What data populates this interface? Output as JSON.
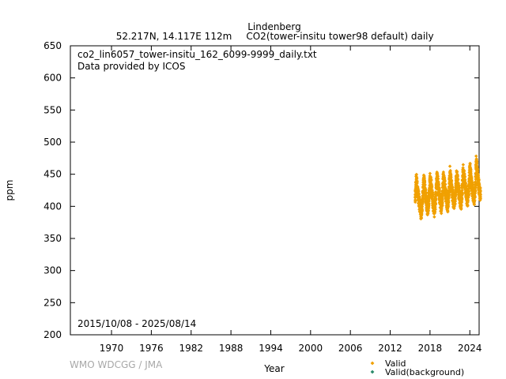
{
  "chart_data": {
    "type": "scatter",
    "title": "Lindenberg",
    "subtitle_location": "52.217N, 14.117E 112m",
    "subtitle_species": "CO2(tower-insitu tower98 default) daily",
    "file_name": "co2_lin6057_tower-insitu_162_6099-9999_daily.txt",
    "provider": "Data provided by ICOS",
    "date_range": "2015/10/08 - 2025/08/14",
    "xlabel": "Year",
    "ylabel": "ppm",
    "xlim": [
      1963.8,
      2025.4
    ],
    "ylim": [
      200,
      650
    ],
    "xticks": [
      1970,
      1976,
      1982,
      1988,
      1994,
      2000,
      2006,
      2012,
      2018,
      2024
    ],
    "yticks": [
      200,
      250,
      300,
      350,
      400,
      450,
      500,
      550,
      600,
      650
    ],
    "grid": false,
    "legend_position": "bottom-right",
    "watermark": "WMO WDCGG / JMA",
    "series": [
      {
        "name": "Valid",
        "color": "#f0a000",
        "marker": "diamond",
        "x_start": "2015-10-08",
        "x_end": "2025-08-14",
        "points": [
          [
            2015.77,
            410
          ],
          [
            2015.85,
            425
          ],
          [
            2015.93,
            442
          ],
          [
            2016.05,
            432
          ],
          [
            2016.2,
            418
          ],
          [
            2016.4,
            405
          ],
          [
            2016.6,
            393
          ],
          [
            2016.68,
            388
          ],
          [
            2016.8,
            400
          ],
          [
            2016.95,
            420
          ],
          [
            2017.05,
            440
          ],
          [
            2017.15,
            436
          ],
          [
            2017.3,
            420
          ],
          [
            2017.5,
            404
          ],
          [
            2017.62,
            396
          ],
          [
            2017.75,
            402
          ],
          [
            2017.9,
            424
          ],
          [
            2018.0,
            441
          ],
          [
            2018.15,
            434
          ],
          [
            2018.35,
            415
          ],
          [
            2018.55,
            400
          ],
          [
            2018.65,
            394
          ],
          [
            2018.8,
            405
          ],
          [
            2018.95,
            428
          ],
          [
            2019.05,
            444
          ],
          [
            2019.2,
            435
          ],
          [
            2019.4,
            418
          ],
          [
            2019.6,
            404
          ],
          [
            2019.7,
            399
          ],
          [
            2019.85,
            412
          ],
          [
            2020.0,
            446
          ],
          [
            2020.15,
            438
          ],
          [
            2020.35,
            420
          ],
          [
            2020.55,
            406
          ],
          [
            2020.68,
            402
          ],
          [
            2020.85,
            418
          ],
          [
            2021.0,
            452
          ],
          [
            2021.1,
            445
          ],
          [
            2021.3,
            425
          ],
          [
            2021.55,
            408
          ],
          [
            2021.68,
            405
          ],
          [
            2021.85,
            420
          ],
          [
            2022.0,
            447
          ],
          [
            2022.15,
            440
          ],
          [
            2022.35,
            422
          ],
          [
            2022.58,
            409
          ],
          [
            2022.7,
            406
          ],
          [
            2022.85,
            425
          ],
          [
            2023.0,
            455
          ],
          [
            2023.12,
            446
          ],
          [
            2023.35,
            428
          ],
          [
            2023.58,
            412
          ],
          [
            2023.7,
            410
          ],
          [
            2023.85,
            428
          ],
          [
            2024.0,
            460
          ],
          [
            2024.1,
            452
          ],
          [
            2024.3,
            432
          ],
          [
            2024.55,
            415
          ],
          [
            2024.68,
            413
          ],
          [
            2024.85,
            432
          ],
          [
            2024.95,
            470
          ],
          [
            2025.1,
            455
          ],
          [
            2025.3,
            436
          ],
          [
            2025.5,
            422
          ],
          [
            2025.62,
            418
          ]
        ]
      },
      {
        "name": "Valid(background)",
        "color": "#2a8a6a",
        "marker": "diamond",
        "points": []
      }
    ]
  }
}
